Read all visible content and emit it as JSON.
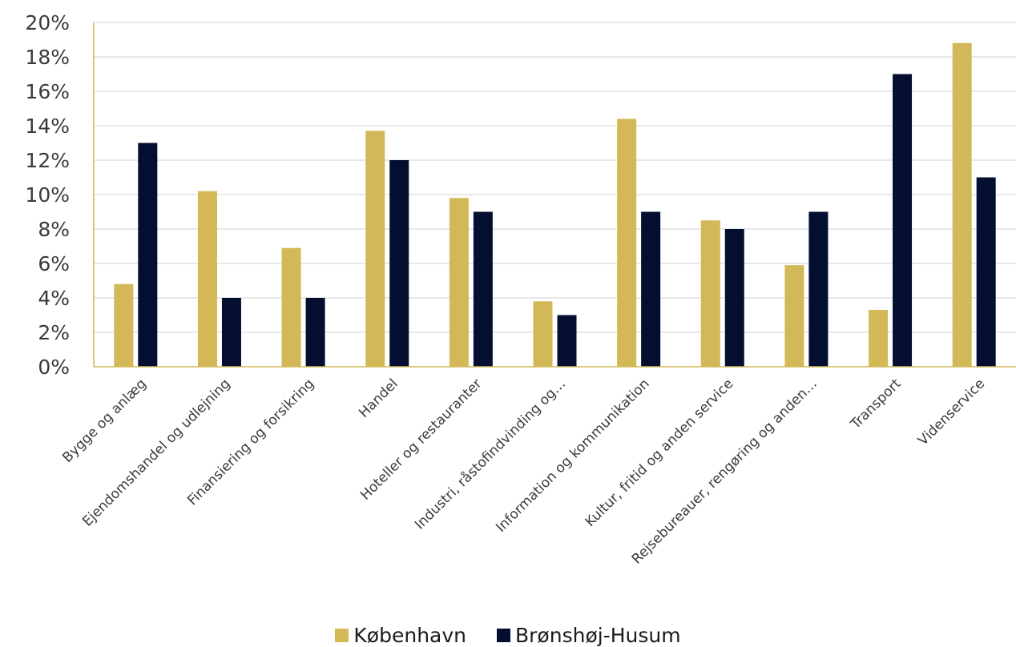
{
  "chart_data": {
    "type": "bar",
    "title": "",
    "xlabel": "",
    "ylabel": "",
    "ylim": [
      0,
      0.2
    ],
    "yticks": [
      "0%",
      "2%",
      "4%",
      "6%",
      "8%",
      "10%",
      "12%",
      "14%",
      "16%",
      "18%",
      "20%"
    ],
    "grid": true,
    "legend_position": "bottom",
    "categories": [
      "Bygge og anlæg",
      "Ejendomshandel og udlejning",
      "Finansiering og forsikring",
      "Handel",
      "Hoteller og restauranter",
      "Industri, råstofindvinding og…",
      "Information og kommunikation",
      "Kultur, fritid og anden service",
      "Rejsebureauer, rengøring og anden…",
      "Transport",
      "Videnservice"
    ],
    "series": [
      {
        "name": "København",
        "color": "#D2B857",
        "values": [
          0.048,
          0.102,
          0.069,
          0.137,
          0.098,
          0.038,
          0.144,
          0.085,
          0.059,
          0.033,
          0.188
        ]
      },
      {
        "name": "Brønshøj-Husum",
        "color": "#040E30",
        "values": [
          0.13,
          0.04,
          0.04,
          0.12,
          0.09,
          0.03,
          0.09,
          0.08,
          0.09,
          0.17,
          0.11
        ]
      }
    ]
  },
  "colors": {
    "axis": "#D2B857",
    "grid": "#D9D9D9"
  }
}
